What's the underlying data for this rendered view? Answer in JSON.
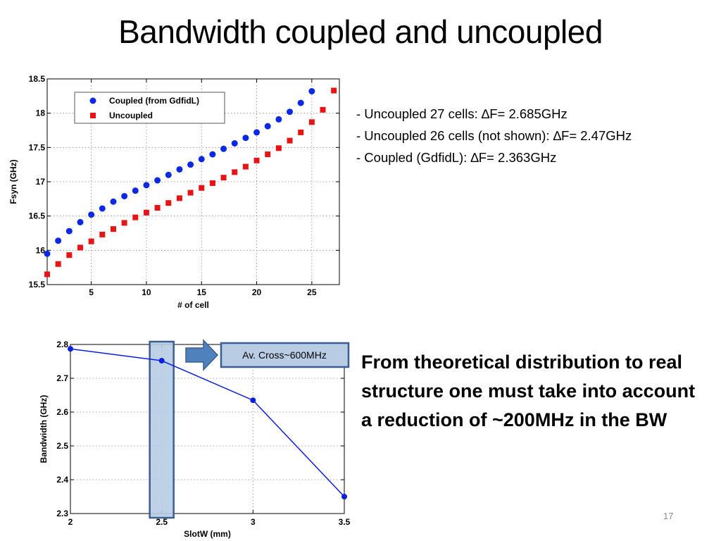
{
  "slide": {
    "title": "Bandwidth coupled and uncoupled",
    "number": "17"
  },
  "notes": [
    "- Uncoupled 27 cells: ∆F= 2.685GHz",
    "- Uncoupled 26 cells (not shown): ∆F= 2.47GHz",
    "- Coupled (GdfidL): ∆F= 2.363GHz"
  ],
  "conclusion": "From theoretical distribution to real structure one must take into account a reduction of ~200MHz in the BW",
  "callout": {
    "label": "Av. Cross~600MHz",
    "highlight_x": 2.5
  },
  "colors": {
    "coupled": "#0a28e6",
    "uncoupled": "#e61414",
    "line": "#0a1ee0",
    "callout_fill": "#b8cce4",
    "callout_border": "#3a5f8f"
  },
  "chart_data": [
    {
      "type": "scatter",
      "title": "",
      "xlabel": "# of cell",
      "ylabel": "Fsyn (GHz)",
      "xlim": [
        1,
        27.5
      ],
      "ylim": [
        15.5,
        18.5
      ],
      "xticks": [
        5,
        10,
        15,
        20,
        25
      ],
      "yticks": [
        15.5,
        16,
        16.5,
        17,
        17.5,
        18,
        18.5
      ],
      "grid": true,
      "legend_position": "top-left",
      "series": [
        {
          "name": "Coupled (from GdfidL)",
          "marker": "circle",
          "x": [
            1,
            2,
            3,
            4,
            5,
            6,
            7,
            8,
            9,
            10,
            11,
            12,
            13,
            14,
            15,
            16,
            17,
            18,
            19,
            20,
            21,
            22,
            23,
            24,
            25
          ],
          "y": [
            15.95,
            16.14,
            16.28,
            16.41,
            16.52,
            16.61,
            16.71,
            16.79,
            16.87,
            16.95,
            17.02,
            17.1,
            17.18,
            17.25,
            17.33,
            17.4,
            17.48,
            17.56,
            17.64,
            17.72,
            17.81,
            17.91,
            18.02,
            18.15,
            18.32
          ]
        },
        {
          "name": "Uncoupled",
          "marker": "square",
          "x": [
            1,
            2,
            3,
            4,
            5,
            6,
            7,
            8,
            9,
            10,
            11,
            12,
            13,
            14,
            15,
            16,
            17,
            18,
            19,
            20,
            21,
            22,
            23,
            24,
            25,
            26,
            27
          ],
          "y": [
            15.65,
            15.8,
            15.93,
            16.04,
            16.13,
            16.23,
            16.31,
            16.4,
            16.48,
            16.55,
            16.62,
            16.69,
            16.76,
            16.84,
            16.91,
            16.98,
            17.06,
            17.14,
            17.22,
            17.31,
            17.4,
            17.49,
            17.6,
            17.72,
            17.87,
            18.05,
            18.33
          ]
        }
      ]
    },
    {
      "type": "line",
      "title": "",
      "xlabel": "SlotW (mm)",
      "ylabel": "Bandwidth (GHz)",
      "xlim": [
        2,
        3.5
      ],
      "ylim": [
        2.3,
        2.8
      ],
      "xticks": [
        2,
        2.5,
        3,
        3.5
      ],
      "xtick_labels": [
        "2",
        "2.5",
        "3",
        "3.5"
      ],
      "yticks": [
        2.3,
        2.4,
        2.5,
        2.6,
        2.7,
        2.8
      ],
      "grid": true,
      "series": [
        {
          "x": [
            2,
            2.5,
            3,
            3.5
          ],
          "y": [
            2.787,
            2.752,
            2.635,
            2.35
          ]
        }
      ]
    }
  ]
}
